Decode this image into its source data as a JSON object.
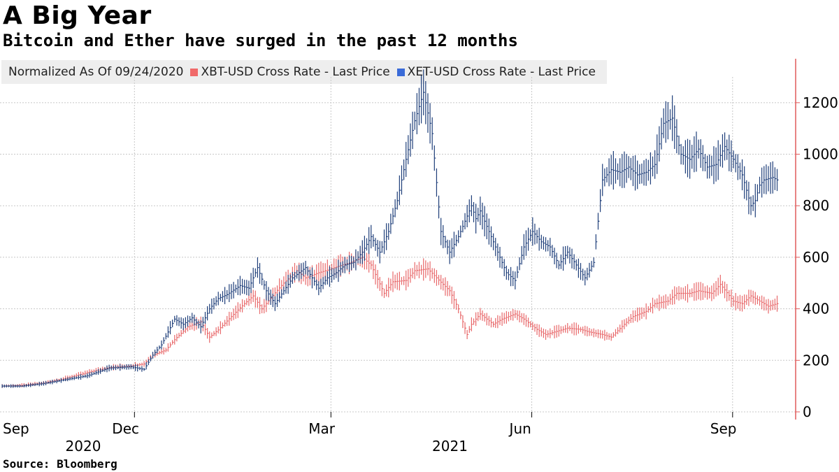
{
  "title": "A Big Year",
  "subtitle": "Bitcoin and Ether have surged in the past 12 months",
  "source": "Source: Bloomberg",
  "legend": {
    "normalized": "Normalized As Of 09/24/2020",
    "btc": "XBT-USD Cross Rate - Last Price",
    "eth": "XET-USD Cross Rate - Last Price"
  },
  "colors": {
    "btc": "#e8696b",
    "eth": "#1f3f7a",
    "btc_swatch": "#f06a6a",
    "eth_swatch": "#3a6bd8",
    "axis": "#e05a5a"
  },
  "chart_data": {
    "type": "line",
    "title": "A Big Year",
    "ylim": [
      0,
      1300
    ],
    "yticks": [
      0,
      200,
      400,
      600,
      800,
      1000,
      1200
    ],
    "xlim": [
      0,
      360
    ],
    "x_unit": "days since 2020-09-24",
    "xticks": [
      {
        "label": "Sep",
        "x": 7
      },
      {
        "label": "Dec",
        "x": 68
      },
      {
        "label": "Mar",
        "x": 158
      },
      {
        "label": "Jun",
        "x": 250
      },
      {
        "label": "Sep",
        "x": 342
      }
    ],
    "year_labels": [
      {
        "label": "2020",
        "x": 37
      },
      {
        "label": "2021",
        "x": 205
      }
    ],
    "series": [
      {
        "name": "XBT-USD Cross Rate - Last Price",
        "x": [
          0,
          10,
          20,
          30,
          40,
          50,
          60,
          66,
          70,
          76,
          80,
          86,
          92,
          96,
          100,
          106,
          112,
          116,
          120,
          126,
          130,
          136,
          140,
          146,
          150,
          156,
          160,
          166,
          170,
          176,
          180,
          186,
          190,
          196,
          200,
          206,
          210,
          214,
          216,
          220,
          226,
          230,
          236,
          240,
          246,
          250,
          254,
          260,
          266,
          270,
          276,
          280,
          286,
          290,
          296,
          300,
          306,
          310,
          316,
          320,
          326,
          330,
          336,
          340,
          344,
          348,
          352,
          356
        ],
        "values": [
          100,
          103,
          112,
          130,
          152,
          172,
          178,
          186,
          220,
          240,
          280,
          330,
          350,
          290,
          318,
          370,
          420,
          450,
          400,
          462,
          500,
          548,
          520,
          540,
          550,
          568,
          578,
          600,
          570,
          460,
          505,
          510,
          548,
          555,
          520,
          470,
          400,
          300,
          340,
          380,
          340,
          360,
          380,
          360,
          320,
          300,
          310,
          325,
          320,
          310,
          300,
          290,
          340,
          370,
          390,
          420,
          430,
          460,
          460,
          470,
          460,
          495,
          430,
          420,
          450,
          430,
          410,
          420
        ]
      },
      {
        "name": "XET-USD Cross Rate - Last Price",
        "x": [
          0,
          10,
          20,
          30,
          40,
          50,
          60,
          66,
          70,
          74,
          80,
          84,
          88,
          92,
          96,
          100,
          104,
          110,
          114,
          118,
          122,
          126,
          130,
          134,
          140,
          146,
          150,
          154,
          158,
          162,
          166,
          170,
          174,
          178,
          182,
          186,
          190,
          194,
          198,
          202,
          206,
          210,
          212,
          214,
          216,
          218,
          220,
          224,
          228,
          232,
          236,
          240,
          244,
          248,
          252,
          256,
          260,
          264,
          268,
          272,
          276,
          280,
          284,
          288,
          292,
          296,
          300,
          304,
          308,
          312,
          316,
          320,
          324,
          328,
          332,
          336,
          340,
          344,
          346,
          348,
          350,
          354,
          356
        ],
        "values": [
          100,
          100,
          110,
          125,
          140,
          170,
          175,
          165,
          220,
          260,
          360,
          340,
          365,
          330,
          400,
          440,
          455,
          490,
          480,
          560,
          470,
          420,
          470,
          520,
          560,
          480,
          520,
          540,
          570,
          580,
          620,
          680,
          620,
          700,
          820,
          980,
          1130,
          1240,
          1080,
          700,
          620,
          680,
          720,
          760,
          800,
          750,
          780,
          700,
          620,
          540,
          510,
          640,
          700,
          660,
          640,
          570,
          620,
          570,
          520,
          580,
          900,
          940,
          930,
          950,
          920,
          930,
          960,
          1120,
          1140,
          1000,
          980,
          1020,
          950,
          960,
          1030,
          980,
          920,
          800,
          820,
          880,
          900,
          910,
          900
        ]
      }
    ]
  }
}
